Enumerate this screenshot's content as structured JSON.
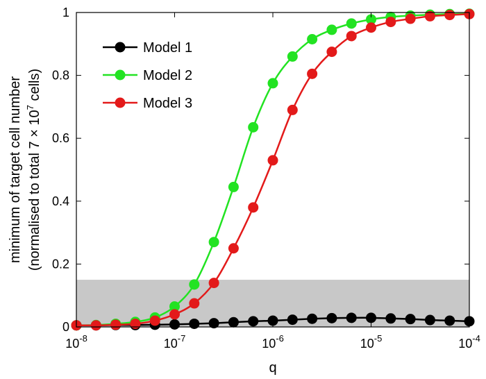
{
  "chart_data": {
    "type": "line",
    "x_scale": "log",
    "xlim": [
      1e-08,
      0.0001
    ],
    "ylim": [
      0,
      1
    ],
    "grid": false,
    "legend_position": "top-left",
    "xlabel": "q",
    "ylabel_line1": "minimum of target cell number",
    "ylabel_line2_prefix": "(normalised to total 7 × 10",
    "ylabel_line2_exp": "7",
    "ylabel_line2_suffix": " cells)",
    "x_ticks": [
      {
        "value": 1e-08,
        "base": "10",
        "exp": "-8"
      },
      {
        "value": 1e-07,
        "base": "10",
        "exp": "-7"
      },
      {
        "value": 1e-06,
        "base": "10",
        "exp": "-6"
      },
      {
        "value": 1e-05,
        "base": "10",
        "exp": "-5"
      },
      {
        "value": 0.0001,
        "base": "10",
        "exp": "-4"
      }
    ],
    "y_ticks": [
      {
        "value": 0,
        "label": "0"
      },
      {
        "value": 0.2,
        "label": "0.2"
      },
      {
        "value": 0.4,
        "label": "0.4"
      },
      {
        "value": 0.6,
        "label": "0.6"
      },
      {
        "value": 0.8,
        "label": "0.8"
      },
      {
        "value": 1,
        "label": "1"
      }
    ],
    "shaded_band": {
      "y_from": 0,
      "y_to": 0.15,
      "color": "#c8c8c8"
    },
    "x": [
      1e-08,
      1.585e-08,
      2.512e-08,
      3.981e-08,
      6.31e-08,
      1e-07,
      1.585e-07,
      2.512e-07,
      3.981e-07,
      6.31e-07,
      1e-06,
      1.585e-06,
      2.512e-06,
      3.981e-06,
      6.31e-06,
      1e-05,
      1.585e-05,
      2.512e-05,
      3.981e-05,
      6.31e-05,
      0.0001
    ],
    "series": [
      {
        "name": "Model 1",
        "color": "#000000",
        "values": [
          0.005,
          0.005,
          0.006,
          0.006,
          0.007,
          0.008,
          0.01,
          0.012,
          0.015,
          0.018,
          0.02,
          0.023,
          0.026,
          0.028,
          0.029,
          0.029,
          0.027,
          0.025,
          0.022,
          0.02,
          0.018
        ]
      },
      {
        "name": "Model 2",
        "color": "#22e322",
        "values": [
          0.005,
          0.006,
          0.01,
          0.016,
          0.03,
          0.065,
          0.135,
          0.27,
          0.445,
          0.635,
          0.775,
          0.86,
          0.915,
          0.945,
          0.965,
          0.978,
          0.986,
          0.99,
          0.993,
          0.995,
          0.996
        ]
      },
      {
        "name": "Model 3",
        "color": "#e31a1a",
        "values": [
          0.005,
          0.005,
          0.007,
          0.01,
          0.02,
          0.04,
          0.075,
          0.14,
          0.25,
          0.38,
          0.53,
          0.69,
          0.805,
          0.875,
          0.925,
          0.952,
          0.97,
          0.98,
          0.988,
          0.992,
          0.995
        ]
      }
    ]
  }
}
